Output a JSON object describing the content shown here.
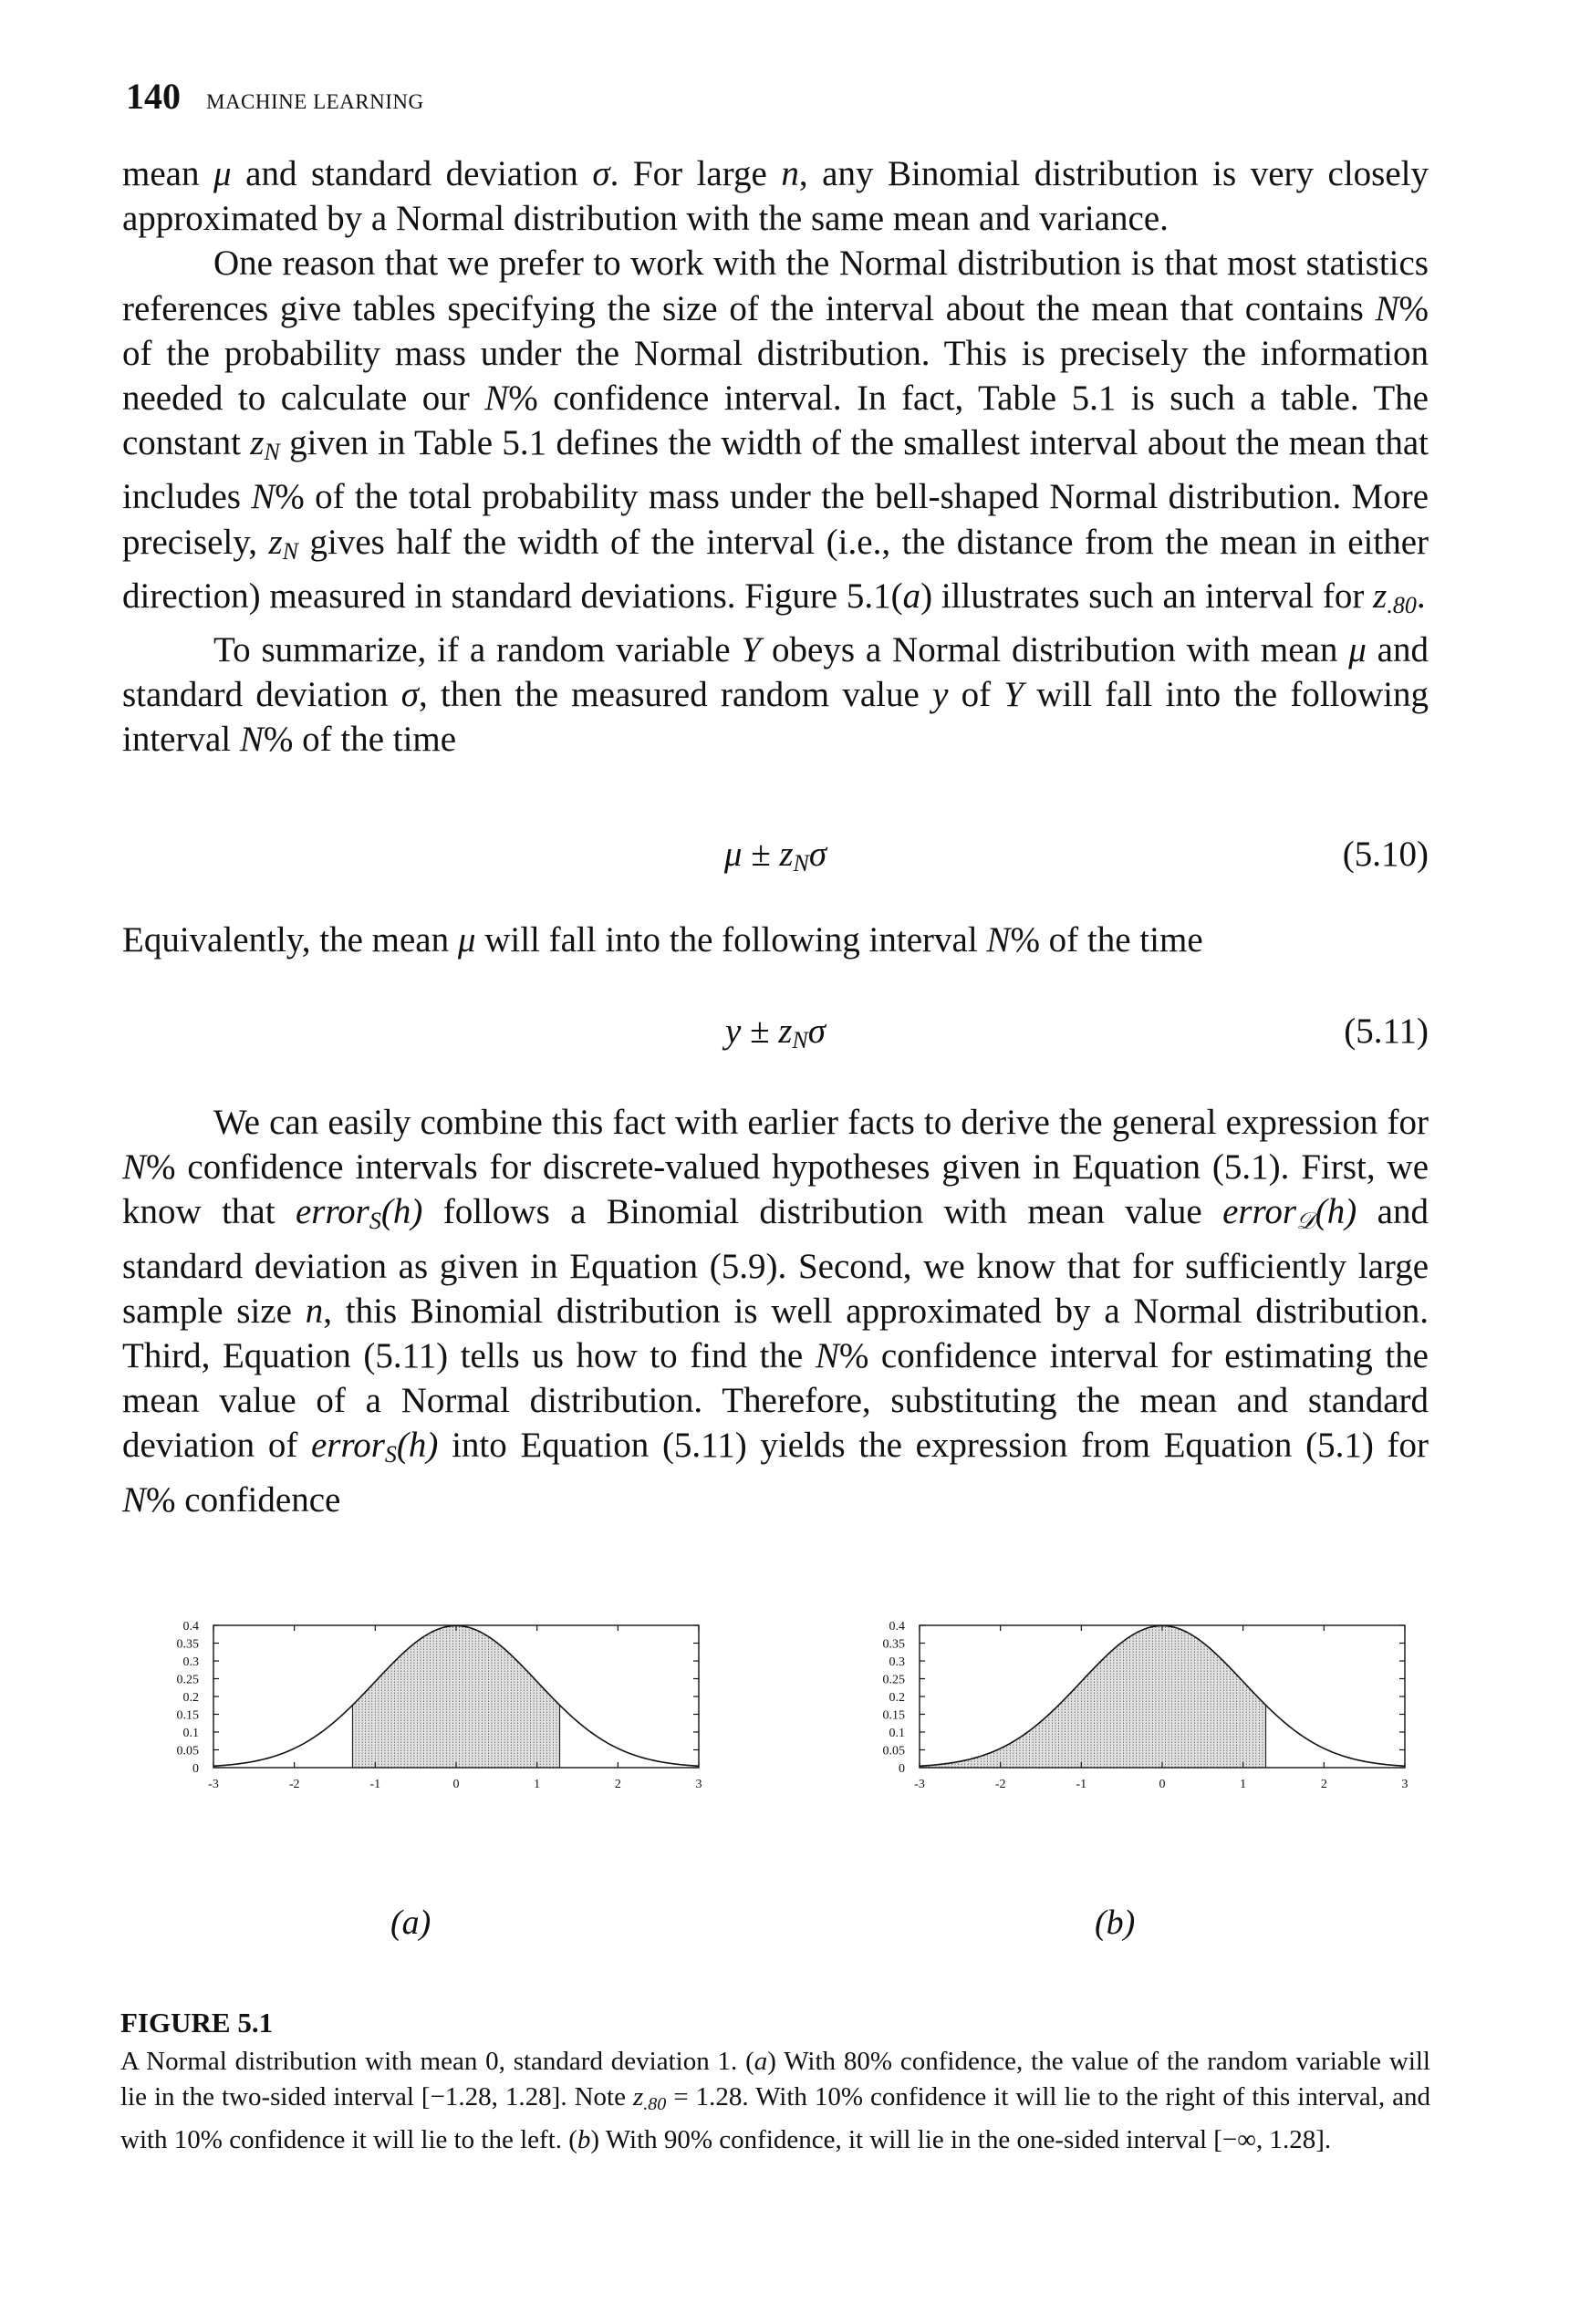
{
  "header": {
    "page_number": "140",
    "running_title": "MACHINE LEARNING"
  },
  "para1": {
    "s1": "mean ",
    "mu": "μ",
    "s2": " and standard deviation ",
    "sigma": "σ",
    "s3": ". For large ",
    "n": "n",
    "s4": ", any Binomial distribution is very closely approximated by a Normal distribution with the same mean and variance."
  },
  "para2": {
    "s1": "One reason that we prefer to work with the Normal distribution is that most statistics references give tables specifying the size of the interval about the mean that contains ",
    "N1": "N",
    "s2": "% of the probability mass under the Normal distribution. This is precisely the information needed to calculate our ",
    "N2": "N",
    "s3": "% confidence interval. In fact, Table 5.1 is such a table. The constant ",
    "z1": "z",
    "z1sub": "N",
    "s4": " given in Table 5.1 defines the width of the smallest interval about the mean that includes ",
    "N3": "N",
    "s5": "% of the total probability mass under the bell-shaped Normal distribution. More precisely, ",
    "z2": "z",
    "z2sub": "N",
    "s6": " gives half the width of the interval (i.e., the distance from the mean in either direction) measured in standard deviations. Figure 5.1(",
    "a": "a",
    "s7": ") illustrates such an interval for ",
    "z3": "z",
    "z3sub": ".80",
    "s8": "."
  },
  "para3": {
    "s1": "To summarize, if a random variable ",
    "Y1": "Y",
    "s2": " obeys a Normal distribution with mean ",
    "mu": "μ",
    "s3": " and standard deviation ",
    "sigma": "σ",
    "s4": ", then the measured random value ",
    "y": "y",
    "s5": " of ",
    "Y2": "Y",
    "s6": " will fall into the following interval ",
    "N": "N",
    "s7": "% of the time"
  },
  "eq510": {
    "lhs": "μ ± z",
    "sub": "N",
    "rhs": "σ",
    "number": "(5.10)"
  },
  "para4": {
    "s1": "Equivalently, the mean ",
    "mu": "μ",
    "s2": " will fall into the following interval ",
    "N": "N",
    "s3": "% of the time"
  },
  "eq511": {
    "lhs": "y ± z",
    "sub": "N",
    "rhs": "σ",
    "number": "(5.11)"
  },
  "para5": {
    "s1": "We can easily combine this fact with earlier facts to derive the general expression for ",
    "N1": "N",
    "s2": "% confidence intervals for discrete-valued hypotheses given in Equation (5.1). First, we know that ",
    "errS1": "error",
    "errS1sub": "S",
    "errS1arg": "(h)",
    "s3": " follows a Binomial distribution with mean value ",
    "errD": "error",
    "errDsub": "𝒟",
    "errDarg": "(h)",
    "s4": " and standard deviation as given in Equation (5.9). Second, we know that for sufficiently large sample size ",
    "n": "n",
    "s5": ", this Binomial distribution is well approximated by a Normal distribution. Third, Equation (5.11) tells us how to find the ",
    "N2": "N",
    "s6": "% confidence interval for estimating the mean value of a Normal distribution. Therefore, substituting the mean and standard deviation of ",
    "errS2": "error",
    "errS2sub": "S",
    "errS2arg": "(h)",
    "s7": " into Equation (5.11) yields the expression from Equation (5.1) for ",
    "N3": "N",
    "s8": "% confidence"
  },
  "chart_data": [
    {
      "type": "area",
      "panel_label": "(a)",
      "x_range": [
        -3,
        3
      ],
      "y_range": [
        0,
        0.4
      ],
      "x_ticks": [
        "-3",
        "-2",
        "-1",
        "0",
        "1",
        "2",
        "3"
      ],
      "y_ticks": [
        "0",
        "0.05",
        "0.1",
        "0.15",
        "0.2",
        "0.25",
        "0.3",
        "0.35",
        "0.4"
      ],
      "curve": "normal pdf, mean 0, standard deviation 1",
      "shaded_interval": [
        -1.28,
        1.28
      ],
      "grid": false
    },
    {
      "type": "area",
      "panel_label": "(b)",
      "x_range": [
        -3,
        3
      ],
      "y_range": [
        0,
        0.4
      ],
      "x_ticks": [
        "-3",
        "-2",
        "-1",
        "0",
        "1",
        "2",
        "3"
      ],
      "y_ticks": [
        "0",
        "0.05",
        "0.1",
        "0.15",
        "0.2",
        "0.25",
        "0.3",
        "0.35",
        "0.4"
      ],
      "curve": "normal pdf, mean 0, standard deviation 1",
      "shaded_interval": [
        -3,
        1.28
      ],
      "grid": false
    }
  ],
  "caption": {
    "title": "FIGURE 5.1",
    "c1": "A Normal distribution with mean 0, standard deviation 1. (",
    "a": "a",
    "c2": ") With 80% confidence, the value of the random variable will lie in the two-sided interval [−1.28, 1.28]. Note ",
    "z": "z",
    "zsub": ".80",
    "c3": " = 1.28. With 10% confidence it will lie to the right of this interval, and with 10% confidence it will lie to the left. (",
    "b": "b",
    "c4": ") With 90% confidence, it will lie in the one-sided interval [−∞, 1.28]."
  }
}
